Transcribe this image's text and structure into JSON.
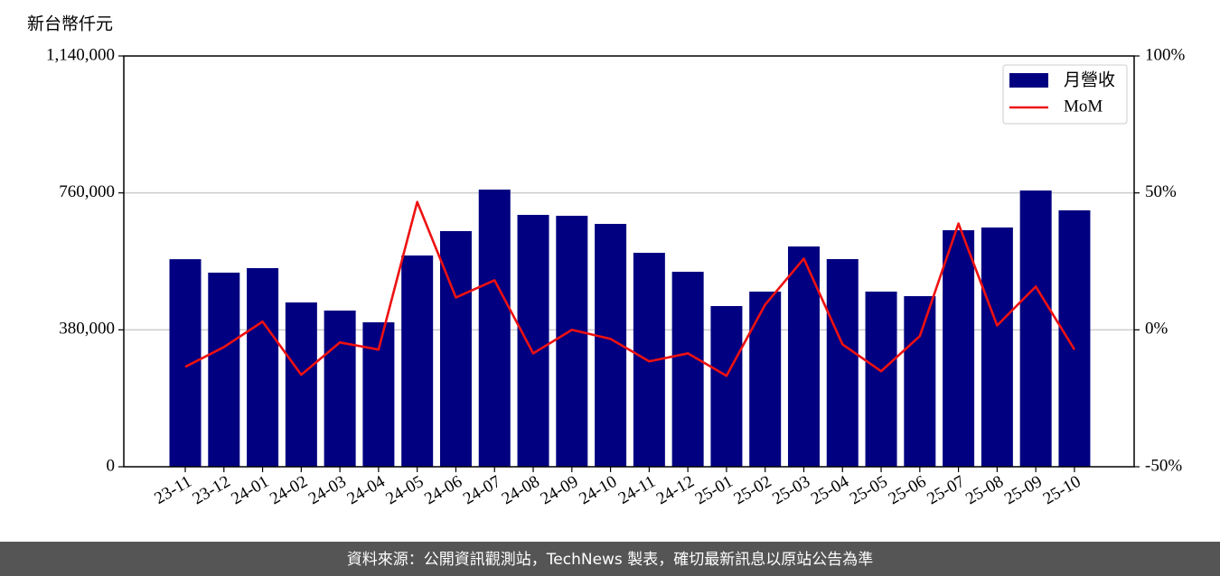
{
  "chart_data": {
    "type": "bar",
    "y_label": "新台幣仟元",
    "categories": [
      "23-11",
      "23-12",
      "24-01",
      "24-02",
      "24-03",
      "24-04",
      "24-05",
      "24-06",
      "24-07",
      "24-08",
      "24-09",
      "24-10",
      "24-11",
      "24-12",
      "25-01",
      "25-02",
      "25-03",
      "25-04",
      "25-05",
      "25-06",
      "25-07",
      "25-08",
      "25-09",
      "25-10"
    ],
    "series": [
      {
        "name": "月營收",
        "type": "bar",
        "color": "#000080",
        "axis": "y",
        "values": [
          576000,
          538700,
          551200,
          456000,
          433500,
          400900,
          586300,
          654000,
          769200,
          699000,
          696500,
          674000,
          593800,
          541200,
          446000,
          486100,
          611300,
          576300,
          486100,
          473500,
          656400,
          664000,
          766700,
          711600
        ]
      },
      {
        "name": "MoM",
        "type": "line",
        "color": "#ee1111",
        "axis": "y2",
        "values": [
          -13.5,
          -6.3,
          3.0,
          -16.4,
          -4.6,
          -7.2,
          46.7,
          11.8,
          18.1,
          -8.6,
          0,
          -3.3,
          -11.5,
          -8.6,
          -16.8,
          9.2,
          26.0,
          -5.3,
          -15.1,
          -2.3,
          38.8,
          1.6,
          15.8,
          -7.2
        ]
      }
    ],
    "ylim": [
      0,
      1140000
    ],
    "yticks": [
      0,
      {
        "value": 380000,
        "label": "380,000"
      },
      {
        "value": 760000,
        "label": "760,000"
      },
      {
        "value": 1140000,
        "label": "1,140,000"
      }
    ],
    "y2lim": [
      -50,
      100
    ],
    "y2ticks": [
      {
        "value": -50,
        "label": "-50%"
      },
      {
        "value": 0,
        "label": "0%"
      },
      {
        "value": 50,
        "label": "50%"
      },
      {
        "value": 100,
        "label": "100%"
      }
    ],
    "grid": true,
    "legend": "upper right"
  },
  "footer": {
    "text": "資料來源：公開資訊觀測站，TechNews 製表，確切最新訊息以原站公告為準"
  }
}
